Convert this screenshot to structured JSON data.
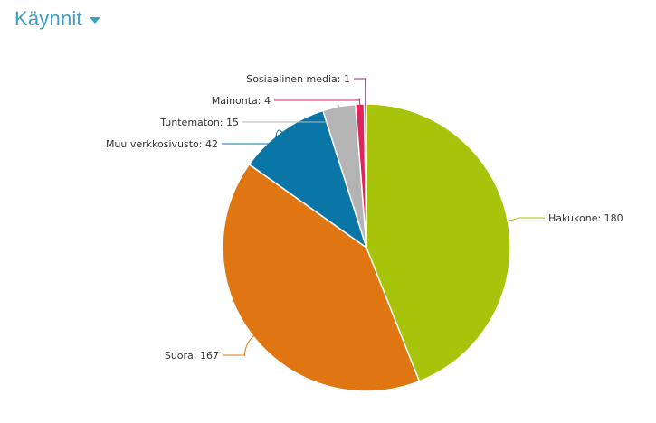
{
  "header": {
    "title": "Käynnit",
    "dropdown_icon": "caret-down-icon"
  },
  "chart_data": {
    "type": "pie",
    "slices": [
      {
        "name": "Hakukone",
        "value": 180,
        "label": "Hakukone: 180",
        "color": "#a8c40a"
      },
      {
        "name": "Suora",
        "value": 167,
        "label": "Suora: 167",
        "color": "#e07612"
      },
      {
        "name": "Muu verkkosivusto",
        "value": 42,
        "label": "Muu verkkosivusto: 42",
        "color": "#0a76a8"
      },
      {
        "name": "Tuntematon",
        "value": 15,
        "label": "Tuntematon: 15",
        "color": "#b4b4b4"
      },
      {
        "name": "Mainonta",
        "value": 4,
        "label": "Mainonta: 4",
        "color": "#e0245a"
      },
      {
        "name": "Sosiaalinen media",
        "value": 1,
        "label": "Sosiaalinen media: 1",
        "color": "#a0207a"
      }
    ]
  }
}
